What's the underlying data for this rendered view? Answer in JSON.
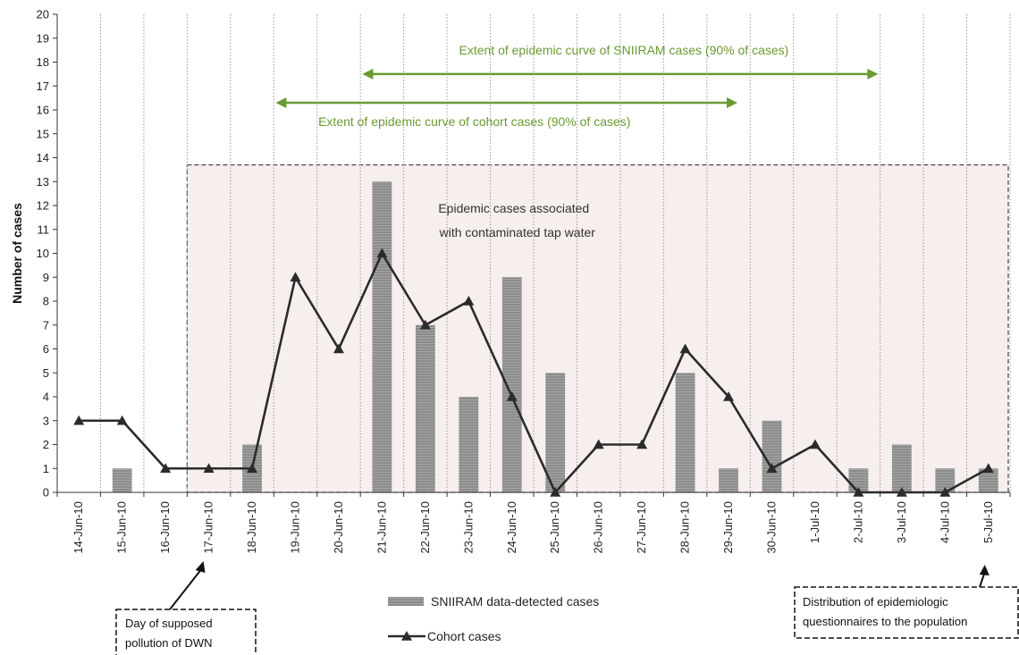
{
  "chart_data": {
    "type": "bar",
    "categories": [
      "14-Jun-10",
      "15-Jun-10",
      "16-Jun-10",
      "17-Jun-10",
      "18-Jun-10",
      "19-Jun-10",
      "20-Jun-10",
      "21-Jun-10",
      "22-Jun-10",
      "23-Jun-10",
      "24-Jun-10",
      "25-Jun-10",
      "26-Jun-10",
      "27-Jun-10",
      "28-Jun-10",
      "29-Jun-10",
      "30-Jun-10",
      "1-Jul-10",
      "2-Jul-10",
      "3-Jul-10",
      "4-Jul-10",
      "5-Jul-10"
    ],
    "series": [
      {
        "name": "SNIIRAM data-detected cases",
        "type": "bar",
        "values": [
          0,
          1,
          0,
          0,
          2,
          0,
          0,
          13,
          7,
          4,
          9,
          5,
          0,
          0,
          5,
          1,
          3,
          0,
          1,
          2,
          1,
          1
        ]
      },
      {
        "name": "Cohort cases",
        "type": "line",
        "marker": "triangle",
        "values": [
          3,
          3,
          1,
          1,
          1,
          9,
          6,
          10,
          7,
          8,
          4,
          0,
          2,
          2,
          6,
          4,
          1,
          2,
          0,
          0,
          0,
          1
        ]
      }
    ],
    "ylabel": "Number of cases",
    "ylim": [
      0,
      20
    ],
    "yticks": [
      0,
      1,
      2,
      3,
      4,
      5,
      6,
      7,
      8,
      9,
      10,
      11,
      12,
      13,
      14,
      15,
      16,
      17,
      18,
      19,
      20
    ],
    "grid": "vertical-dotted",
    "colors": {
      "bar": "#8c8c8c",
      "line": "#2b2b2b",
      "annotation": "#6a9a32",
      "shaded_region": "#f7eeee"
    },
    "annotations": {
      "epidemic_region": {
        "label_line1": "Epidemic cases associated",
        "label_line2": "with contaminated tap water",
        "from": "17-Jun-10",
        "to": "5-Jul-10",
        "y_top": 13.7
      },
      "sniiram_extent": {
        "label": "Extent of epidemic curve of SNIIRAM cases (90% of cases)",
        "from": "21-Jun-10",
        "to": "2-Jul-10",
        "y": 17.5
      },
      "cohort_extent": {
        "label": "Extent of epidemic curve of cohort cases (90% of cases)",
        "from": "19-Jun-10",
        "to": "29-Jun-10",
        "y": 16.3
      },
      "pollution_callout": {
        "line1": "Day of supposed",
        "line2": "pollution of DWN",
        "points_to": "17-Jun-10"
      },
      "questionnaire_callout": {
        "line1": "Distribution of epidemiologic",
        "line2": "questionnaires to the population",
        "points_to": "5-Jul-10"
      }
    },
    "legend": {
      "placement": "bottom-center"
    }
  }
}
